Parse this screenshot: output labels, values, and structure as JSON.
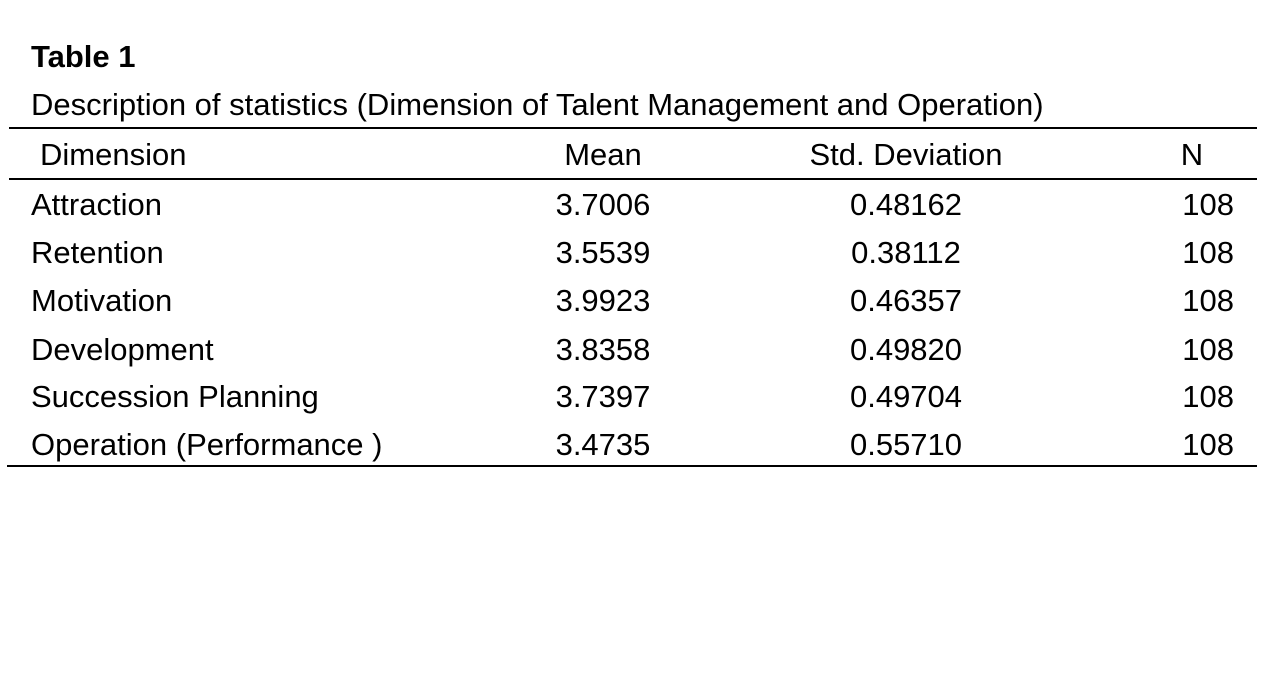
{
  "table": {
    "number": "Table 1",
    "caption": "Description of statistics (Dimension of Talent Management and Operation)",
    "headers": [
      "Dimension",
      "Mean",
      "Std. Deviation",
      "N"
    ],
    "rows": [
      [
        "Attraction",
        "3.7006",
        "0.48162",
        "108"
      ],
      [
        "Retention",
        "3.5539",
        "0.38112",
        "108"
      ],
      [
        "Motivation",
        "3.9923",
        "0.46357",
        "108"
      ],
      [
        "Development",
        "3.8358",
        "0.49820",
        "108"
      ],
      [
        "Succession Planning",
        "3.7397",
        "0.49704",
        "108"
      ],
      [
        "Operation (Performance )",
        "3.4735",
        "0.55710",
        "108"
      ]
    ]
  }
}
